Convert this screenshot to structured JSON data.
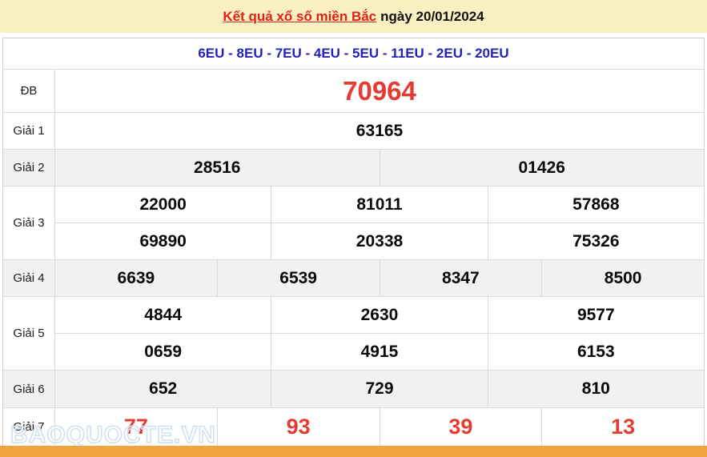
{
  "page": {
    "title_link": "Kết quả xổ số miền Bắc",
    "title_suffix": "ngày 20/01/2024"
  },
  "draw_codes": "6EU - 8EU - 7EU - 4EU - 5EU - 11EU - 2EU - 20EU",
  "results": {
    "rows": [
      {
        "label": "ĐB",
        "values": [
          "70964"
        ]
      },
      {
        "label": "Giải 1",
        "values": [
          "63165"
        ]
      },
      {
        "label": "Giải 2",
        "values": [
          "28516",
          "01426"
        ]
      },
      {
        "label": "Giải 3",
        "rows": [
          [
            "22000",
            "81011",
            "57868"
          ],
          [
            "69890",
            "20338",
            "75326"
          ]
        ]
      },
      {
        "label": "Giải 4",
        "values": [
          "6639",
          "6539",
          "8347",
          "8500"
        ]
      },
      {
        "label": "Giải 5",
        "rows": [
          [
            "4844",
            "2630",
            "9577"
          ],
          [
            "0659",
            "4915",
            "6153"
          ]
        ]
      },
      {
        "label": "Giải 6",
        "values": [
          "652",
          "729",
          "810"
        ]
      },
      {
        "label": "Giải 7",
        "values": [
          "77",
          "93",
          "39",
          "13"
        ]
      }
    ]
  },
  "watermark": "BAOQUOCTE.VN",
  "colors": {
    "header_yellow": "#fbf0c2",
    "title_red": "#e02016",
    "code_blue": "#2323b8",
    "accent_red": "#e63b32",
    "stripe_gray": "#f1f1f1",
    "bar_orange": "#f2a23e"
  }
}
